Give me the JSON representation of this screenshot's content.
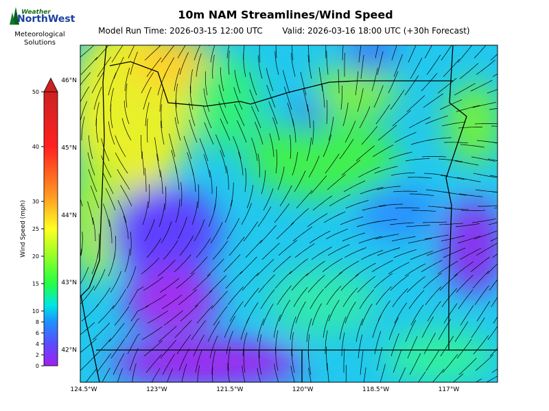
{
  "header": {
    "title": "10m NAM Streamlines/Wind Speed",
    "model_run": "Model Run Time: 2026-03-15 12:00 UTC",
    "valid": "Valid: 2026-03-16 18:00 UTC  (+30h Forecast)"
  },
  "logo": {
    "line1": "Weather",
    "line2": "NorthWest",
    "line3": "Meteorological",
    "line4": "Solutions"
  },
  "colorbar": {
    "label": "Wind Speed (mph)",
    "lim": [
      0,
      50
    ],
    "ticks": [
      0,
      2,
      4,
      6,
      8,
      10,
      15,
      20,
      25,
      30,
      40,
      50
    ]
  },
  "map": {
    "lat_labels": [
      "46°N",
      "45°N",
      "44°N",
      "43°N",
      "42°N"
    ],
    "lon_labels": [
      "124.5°W",
      "123°W",
      "121.5°W",
      "120°W",
      "118.5°W",
      "117°W"
    ]
  }
}
